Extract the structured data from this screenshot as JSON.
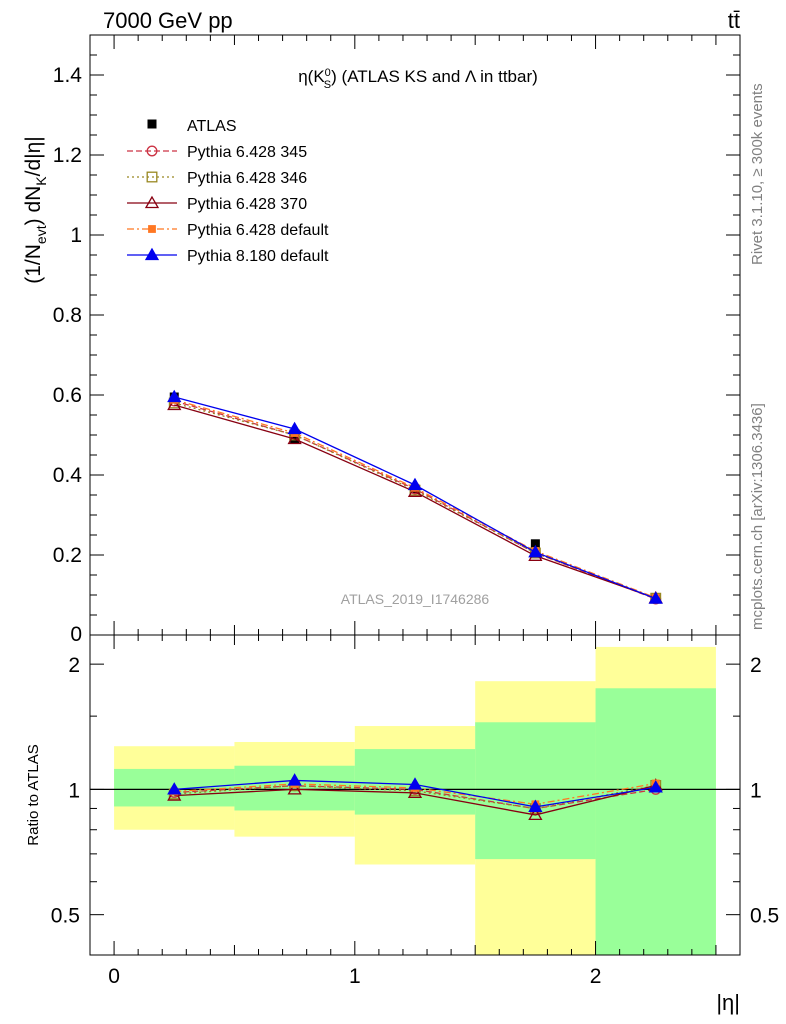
{
  "header": {
    "energy_label": "7000 GeV pp",
    "process_label": "tt̄"
  },
  "side_text": {
    "rivet": "Rivet 3.1.10, ≥ 300k events",
    "mcplots": "mcplots.cern.ch [arXiv:1306.3436]"
  },
  "chart_data": {
    "type": "line",
    "title": "η(K_S^0) (ATLAS KS and Λ in ttbar)",
    "analysis_label": "ATLAS_2019_I1746286",
    "xlabel": "|η|",
    "ylabel": "(1/N_evt) dN_K/d|η|",
    "ratio_ylabel": "Ratio to ATLAS",
    "xlim": [
      -0.1,
      2.6
    ],
    "ylim": [
      0,
      1.5
    ],
    "ratio_ylim": [
      0.4,
      2.35
    ],
    "ratio_scale": "log",
    "x_ticks": [
      "0",
      "1",
      "2"
    ],
    "y_ticks": [
      "0.2",
      "0.4",
      "0.6",
      "0.8",
      "1",
      "1.2",
      "1.4"
    ],
    "y_bottom_tick": "0",
    "ratio_ticks": [
      "0.5",
      "1",
      "2"
    ],
    "x": [
      0.25,
      0.75,
      1.25,
      1.75,
      2.25
    ],
    "bin_edges": [
      0,
      0.5,
      1.0,
      1.5,
      2.0,
      2.5
    ],
    "legend_position": "top-left",
    "data": {
      "name": "ATLAS",
      "color": "#000000",
      "values": [
        0.595,
        0.49,
        0.365,
        0.228,
        0.09
      ]
    },
    "ratio_bands": {
      "inner_green": [
        [
          0.91,
          1.12
        ],
        [
          0.89,
          1.14
        ],
        [
          0.87,
          1.25
        ],
        [
          0.68,
          1.45
        ],
        [
          0.3,
          1.75
        ]
      ],
      "outer_yellow": [
        [
          0.8,
          1.27
        ],
        [
          0.77,
          1.3
        ],
        [
          0.66,
          1.42
        ],
        [
          0.3,
          1.82
        ],
        [
          0.3,
          2.2
        ]
      ],
      "green_color": "#99ff99",
      "yellow_color": "#ffff99"
    },
    "series": [
      {
        "name": "Pythia 6.428 345",
        "color": "#cc3344",
        "dash": "dashed",
        "marker": "open-circle",
        "values": [
          0.585,
          0.5,
          0.365,
          0.205,
          0.09
        ]
      },
      {
        "name": "Pythia 6.428 346",
        "color": "#998822",
        "dash": "dotted",
        "marker": "open-square",
        "values": [
          0.58,
          0.5,
          0.362,
          0.205,
          0.092
        ]
      },
      {
        "name": "Pythia 6.428 370",
        "color": "#880011",
        "dash": "solid",
        "marker": "open-triangle",
        "values": [
          0.575,
          0.49,
          0.358,
          0.198,
          0.092
        ]
      },
      {
        "name": "Pythia 6.428 default",
        "color": "#ff7722",
        "dash": "dashdot",
        "marker": "filled-square",
        "values": [
          0.588,
          0.505,
          0.368,
          0.21,
          0.093
        ]
      },
      {
        "name": "Pythia 8.180 default",
        "color": "#0000ee",
        "dash": "solid",
        "marker": "filled-triangle",
        "values": [
          0.595,
          0.515,
          0.375,
          0.207,
          0.091
        ]
      }
    ]
  }
}
